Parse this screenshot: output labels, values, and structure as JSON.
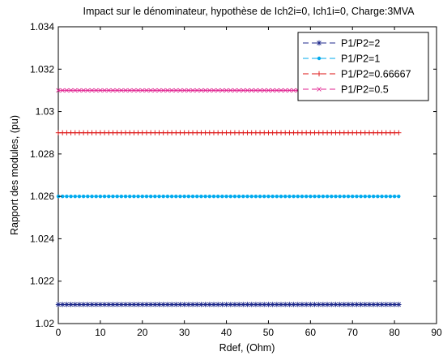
{
  "chart_data": {
    "type": "line",
    "title": "Impact sur le dénominateur, hypothèse de Ich2i=0, Ich1i=0, Charge:3MVA",
    "xlabel": "Rdef, (Ohm)",
    "ylabel": "Rapport des modules, (pu)",
    "xlim": [
      0,
      90
    ],
    "ylim": [
      1.02,
      1.034
    ],
    "xticks": [
      0,
      10,
      20,
      30,
      40,
      50,
      60,
      70,
      80,
      90
    ],
    "yticks": [
      1.02,
      1.022,
      1.024,
      1.026,
      1.028,
      1.03,
      1.032,
      1.034
    ],
    "xtick_labels": [
      "0",
      "10",
      "20",
      "30",
      "40",
      "50",
      "60",
      "70",
      "80",
      "90"
    ],
    "ytick_labels": [
      "1.02",
      "1.022",
      "1.024",
      "1.026",
      "1.028",
      "1.03",
      "1.032",
      "1.034"
    ],
    "grid": false,
    "legend_position": "top-right",
    "x_range": [
      0,
      81
    ],
    "point_count": 82,
    "series": [
      {
        "name": "P1/P2=2",
        "value": 1.0209,
        "color": "#1f2a8c",
        "marker": "asterisk"
      },
      {
        "name": "P1/P2=1",
        "value": 1.026,
        "color": "#00aaee",
        "marker": "dot"
      },
      {
        "name": "P1/P2=0.66667",
        "value": 1.029,
        "color": "#dd1111",
        "marker": "plus"
      },
      {
        "name": "P1/P2=0.5",
        "value": 1.031,
        "color": "#e0208f",
        "marker": "x"
      }
    ]
  }
}
